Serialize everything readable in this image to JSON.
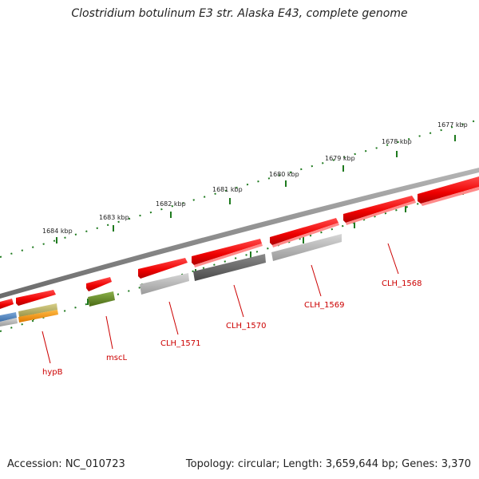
{
  "title": "Clostridium botulinum E3 str. Alaska E43, complete genome",
  "accession": "Accession: NC_010723",
  "summary": "Topology: circular; Length: 3,659,644 bp; Genes: 3,370",
  "kbp_labels": [
    "1677 kbp",
    "1678 kbp",
    "1679 kbp",
    "1680 kbp",
    "1681 kbp",
    "1682 kbp",
    "1683 kbp",
    "1684 kbp"
  ],
  "genes": [
    "CLH_1568",
    "CLH_1569",
    "CLH_1570",
    "CLH_1571",
    "mscL",
    "hypB"
  ],
  "colors": {
    "cds": "#ff1a1a",
    "backbone": "#8a8a8a",
    "gc_tick": "#1e7a1e",
    "label": "#cc0000"
  }
}
